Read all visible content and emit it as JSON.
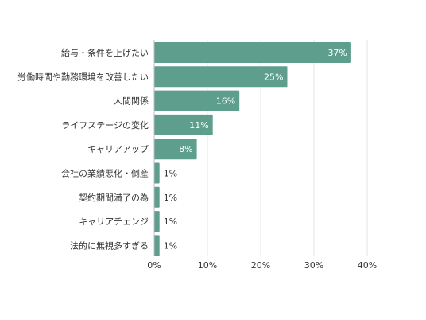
{
  "chart_data": {
    "type": "bar",
    "orientation": "horizontal",
    "title": "",
    "xlabel": "",
    "ylabel": "",
    "categories": [
      "給与・条件を上げたい",
      "労働時間や勤務環境を改善したい",
      "人間関係",
      "ライフステージの変化",
      "キャリアアップ",
      "会社の業績悪化・倒産",
      "契約期間満了の為",
      "キャリアチェンジ",
      "法的に無視多すぎる"
    ],
    "values": [
      37,
      25,
      16,
      11,
      8,
      1,
      1,
      1,
      1
    ],
    "value_labels": [
      "37%",
      "25%",
      "16%",
      "11%",
      "8%",
      "1%",
      "1%",
      "1%",
      "1%"
    ],
    "xlim": [
      0,
      40
    ],
    "xticks": [
      0,
      10,
      20,
      30,
      40
    ],
    "xtick_labels": [
      "0%",
      "10%",
      "20%",
      "30%",
      "40%"
    ],
    "grid": "vertical",
    "legend": "none",
    "bar_color": "#5e9e8d",
    "inside_label_color": "#ffffff",
    "outside_label_color": "#333333"
  }
}
